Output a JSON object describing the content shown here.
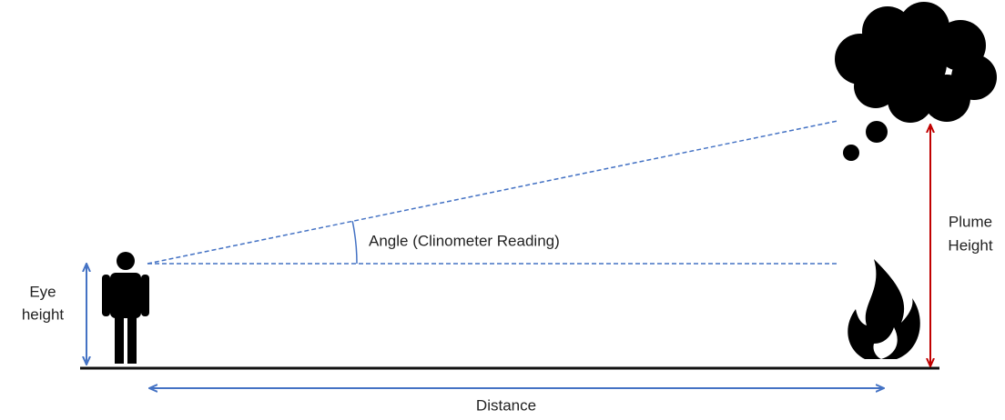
{
  "labels": {
    "eye_height": [
      "Eye",
      "height"
    ],
    "angle": "Angle (Clinometer Reading)",
    "plume_height": [
      "Plume",
      "Height"
    ],
    "distance": "Distance"
  }
}
